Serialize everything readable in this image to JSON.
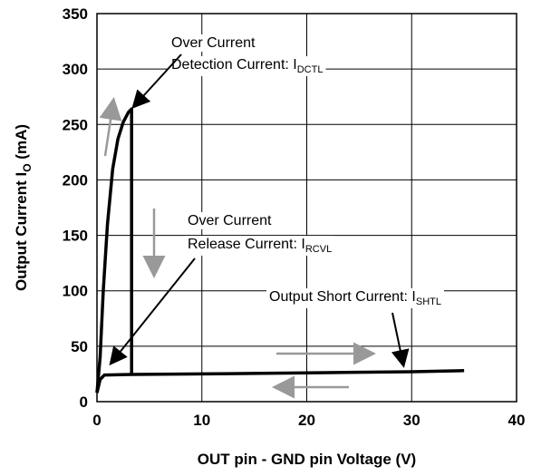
{
  "chart_data": {
    "type": "line",
    "xlabel": "OUT pin - GND pin Voltage (V)",
    "ylabel": {
      "main": "Output  Current  I",
      "sub": "O",
      "unit": "  (mA)"
    },
    "xlim": [
      0,
      40
    ],
    "xticks": [
      0,
      10,
      20,
      30,
      40
    ],
    "ylim": [
      0,
      350
    ],
    "yticks": [
      0,
      50,
      100,
      150,
      200,
      250,
      300,
      350
    ],
    "grid": true,
    "series": [
      {
        "color": "#000000",
        "x": [
          0,
          0.3,
          0.6,
          1,
          1.5,
          2,
          2.5,
          3,
          3.3,
          3.3
        ],
        "values": [
          8,
          40,
          100,
          160,
          210,
          237,
          252,
          261,
          264,
          25
        ]
      },
      {
        "color": "#000000",
        "x": [
          0,
          0.3,
          0.7,
          3.3,
          10,
          20,
          30,
          35
        ],
        "values": [
          8,
          20,
          24,
          24.5,
          25,
          26,
          27,
          28
        ]
      }
    ],
    "annotations": [
      {
        "lines": [
          "Over Current",
          "Detection Current: I"
        ],
        "sub": "DCTL"
      },
      {
        "lines": [
          "Over Current",
          "Release Current: I"
        ],
        "sub": "RCVL"
      },
      {
        "lines": [
          "Output Short Current: I"
        ],
        "sub": "SHTL"
      }
    ]
  }
}
